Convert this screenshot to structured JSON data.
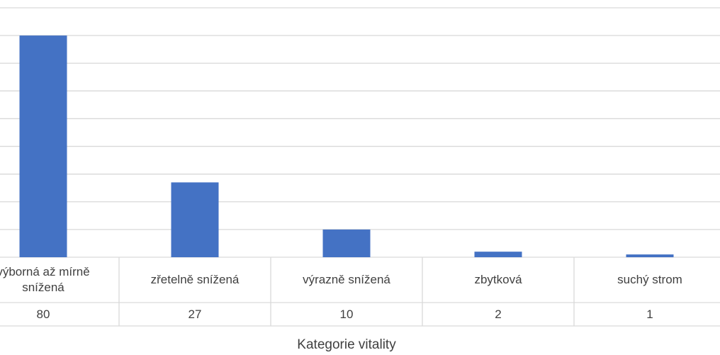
{
  "chart_data": {
    "type": "bar",
    "categories": [
      "výborná až mírně snížená",
      "zřetelně snížená",
      "výrazně snížená",
      "zbytková",
      "suchý strom"
    ],
    "values": [
      80,
      27,
      10,
      2,
      1
    ],
    "color": "#4472c4",
    "ylim": [
      0,
      90
    ],
    "yticks": [
      0,
      10,
      20,
      30,
      40,
      50,
      60,
      70,
      80,
      90
    ],
    "grid": true,
    "x_label": "Kategorie vitality"
  }
}
